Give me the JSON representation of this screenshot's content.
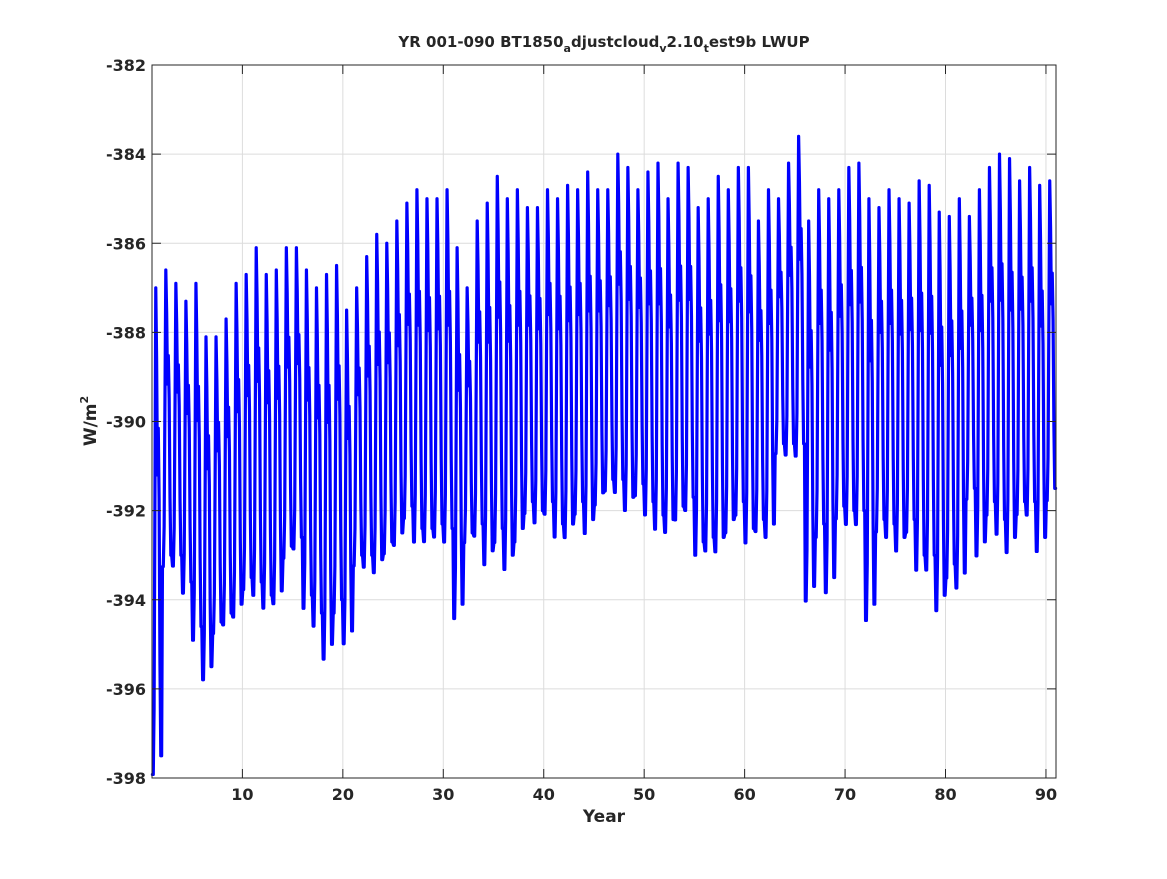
{
  "chart_data": {
    "type": "line",
    "title": {
      "part1": "YR 001-090 BT1850",
      "sub1": "a",
      "part2": "djustcloud",
      "sub2": "v",
      "part3": "2.10",
      "sub3": "t",
      "part4": "est9b LWUP"
    },
    "xlabel": "Year",
    "ylabel": {
      "base": "W/m",
      "sup": "2"
    },
    "xlim": [
      1,
      91
    ],
    "ylim": [
      -398,
      -382
    ],
    "grid": true,
    "xticks": [
      10,
      20,
      30,
      40,
      50,
      60,
      70,
      80,
      90
    ],
    "yticks": [
      -398,
      -396,
      -394,
      -392,
      -390,
      -388,
      -386,
      -384,
      -382
    ],
    "series": [
      {
        "color": "#0000ff",
        "sampling": "monthly",
        "seasonal_shape": [
          -0.04,
          -0.04,
          0.1,
          0.55,
          1.0,
          0.85,
          0.6,
          0.7,
          0.55,
          0.2,
          0.0,
          0.0
        ],
        "annual_min": [
          -397.5,
          -393.0,
          -393.0,
          -393.6,
          -394.6,
          -395.5,
          -394.5,
          -394.3,
          -394.1,
          -393.5,
          -393.6,
          -393.9,
          -393.8,
          -392.8,
          -392.6,
          -393.9,
          -394.3,
          -395.0,
          -394.0,
          -394.7,
          -393.0,
          -393.0,
          -393.1,
          -392.7,
          -392.5,
          -391.9,
          -392.4,
          -392.4,
          -392.3,
          -392.4,
          -394.1,
          -392.5,
          -392.3,
          -392.9,
          -392.4,
          -393.0,
          -392.4,
          -391.8,
          -392.0,
          -391.8,
          -392.3,
          -392.3,
          -391.8,
          -392.2,
          -391.6,
          -391.3,
          -391.3,
          -391.7,
          -391.4,
          -391.8,
          -392.1,
          -392.2,
          -391.9,
          -391.7,
          -392.7,
          -392.6,
          -392.6,
          -392.2,
          -391.8,
          -392.4,
          -392.2,
          -392.3,
          -390.5,
          -390.5,
          -390.5,
          -393.7,
          -392.3,
          -393.5,
          -391.9,
          -392.0,
          -392.0,
          -394.1,
          -392.2,
          -392.3,
          -392.6,
          -392.2,
          -393.0,
          -393.0,
          -393.9,
          -393.2,
          -393.4,
          -391.5,
          -392.7,
          -391.8,
          -392.2,
          -392.6,
          -391.8,
          -391.8,
          -392.6,
          -391.5
        ],
        "annual_max": [
          -387.0,
          -386.6,
          -386.9,
          -387.3,
          -386.9,
          -388.1,
          -388.1,
          -387.7,
          -386.9,
          -386.7,
          -386.1,
          -386.7,
          -386.6,
          -386.1,
          -386.1,
          -386.6,
          -387.0,
          -386.7,
          -386.5,
          -387.5,
          -387.0,
          -386.3,
          -385.8,
          -386.0,
          -385.5,
          -385.1,
          -384.8,
          -385.0,
          -385.0,
          -384.8,
          -386.1,
          -387.0,
          -385.5,
          -385.1,
          -384.5,
          -385.0,
          -384.8,
          -385.2,
          -385.2,
          -384.8,
          -385.0,
          -384.7,
          -384.8,
          -384.4,
          -384.8,
          -384.8,
          -384.0,
          -384.3,
          -384.8,
          -384.4,
          -384.2,
          -385.0,
          -384.2,
          -384.3,
          -385.2,
          -385.0,
          -384.5,
          -384.8,
          -384.3,
          -384.3,
          -385.5,
          -384.8,
          -385.0,
          -384.2,
          -383.6,
          -385.5,
          -384.8,
          -385.0,
          -384.8,
          -384.3,
          -384.2,
          -385.0,
          -385.2,
          -384.8,
          -385.0,
          -385.1,
          -384.6,
          -384.7,
          -385.3,
          -385.4,
          -385.0,
          -385.4,
          -384.8,
          -384.3,
          -384.0,
          -384.1,
          -384.6,
          -384.3,
          -384.7,
          -384.6
        ]
      }
    ]
  }
}
